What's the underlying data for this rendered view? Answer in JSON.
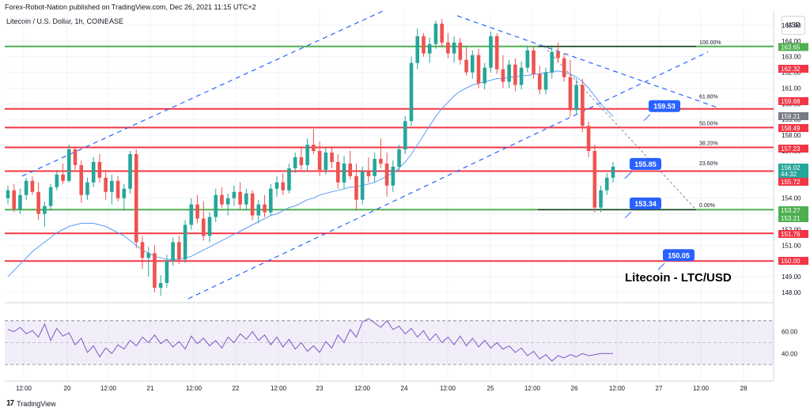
{
  "header": "Forex-Robot-Nation published on TradingView.com, Dec 26, 2021 11:15 UTC+2",
  "symbol_line": "Litecoin / U.S. Dollar, 1h, COINBASE",
  "currency_button": "USD",
  "footer_brand": "TradingView",
  "footer_logo": "17",
  "chart_data": {
    "type": "candlestick",
    "title": "Litecoin - LTC/USD",
    "x_ticks": [
      "12:00",
      "20",
      "12:00",
      "21",
      "12:00",
      "22",
      "12:00",
      "23",
      "12:00",
      "24",
      "12:00",
      "25",
      "12:00",
      "26",
      "12:00",
      "27",
      "12:00",
      "28"
    ],
    "price_ticks": [
      165.0,
      164.0,
      163.0,
      162.0,
      161.0,
      160.0,
      159.0,
      158.0,
      157.0,
      156.0,
      155.0,
      154.0,
      153.0,
      152.0,
      151.0,
      150.0,
      149.0,
      148.0
    ],
    "price_ylim": [
      147.6,
      165.9
    ],
    "rsi_ticks": [
      60.0,
      40.0
    ],
    "rsi_ylim": [
      25,
      80
    ],
    "rsi_bands": [
      70,
      30
    ],
    "horizontal_levels": [
      {
        "price": 163.65,
        "color": "#4caf50"
      },
      {
        "price": 159.68,
        "color": "#f23645"
      },
      {
        "price": 158.49,
        "color": "#f23645"
      },
      {
        "price": 157.23,
        "color": "#f23645"
      },
      {
        "price": 155.72,
        "color": "#f23645"
      },
      {
        "price": 153.27,
        "color": "#4caf50"
      },
      {
        "price": 151.76,
        "color": "#f23645"
      },
      {
        "price": 150.0,
        "color": "#f23645"
      }
    ],
    "price_tags": [
      {
        "label": "163.65",
        "color": "#4caf50"
      },
      {
        "label": "162.32",
        "color": "#f23645"
      },
      {
        "label": "159.68",
        "color": "#f23645"
      },
      {
        "label": "159.21",
        "color": "#787b86"
      },
      {
        "label": "158.49",
        "color": "#f23645"
      },
      {
        "label": "157.23",
        "color": "#f23645"
      },
      {
        "label": "156.02",
        "color": "#26a69a",
        "sub": "44:32"
      },
      {
        "label": "155.72",
        "color": "#f23645"
      },
      {
        "label": "153.27",
        "color": "#4caf50"
      },
      {
        "label": "153.21",
        "color": "#4caf50"
      },
      {
        "label": "151.76",
        "color": "#f23645"
      },
      {
        "label": "150.00",
        "color": "#f23645"
      }
    ],
    "callouts": [
      {
        "label": "159.53",
        "price": 159.53
      },
      {
        "label": "155.85",
        "price": 155.85
      },
      {
        "label": "153.34",
        "price": 153.34
      },
      {
        "label": "150.05",
        "price": 150.05
      }
    ],
    "fib_levels": [
      {
        "label": "100.00%",
        "price": 163.65
      },
      {
        "label": "61.80%",
        "price": 160.19
      },
      {
        "label": "50.00%",
        "price": 158.49
      },
      {
        "label": "38.20%",
        "price": 157.23
      },
      {
        "label": "23.60%",
        "price": 155.95
      },
      {
        "label": "0.00%",
        "price": 153.27
      }
    ],
    "candles": [
      [
        154.0,
        154.8,
        153.6,
        154.5
      ],
      [
        154.5,
        154.9,
        153.1,
        153.3
      ],
      [
        153.3,
        154.6,
        153.0,
        154.2
      ],
      [
        154.2,
        155.3,
        153.9,
        155.1
      ],
      [
        155.1,
        155.4,
        154.2,
        154.4
      ],
      [
        154.4,
        155.0,
        152.6,
        153.0
      ],
      [
        153.0,
        153.8,
        152.2,
        153.5
      ],
      [
        153.5,
        154.9,
        153.2,
        154.7
      ],
      [
        154.7,
        155.8,
        154.5,
        155.5
      ],
      [
        155.5,
        156.2,
        154.9,
        155.1
      ],
      [
        155.1,
        157.4,
        155.0,
        157.1
      ],
      [
        157.1,
        157.3,
        155.8,
        156.1
      ],
      [
        156.1,
        156.4,
        153.7,
        154.2
      ],
      [
        154.2,
        155.3,
        153.9,
        155.0
      ],
      [
        155.0,
        156.6,
        154.7,
        156.3
      ],
      [
        156.3,
        156.8,
        155.0,
        155.3
      ],
      [
        155.3,
        155.8,
        153.9,
        154.4
      ],
      [
        154.4,
        155.5,
        153.6,
        155.1
      ],
      [
        155.1,
        155.4,
        153.8,
        154.0
      ],
      [
        154.0,
        154.9,
        153.2,
        154.6
      ],
      [
        154.6,
        157.0,
        154.3,
        156.8
      ],
      [
        156.8,
        157.1,
        150.8,
        151.2
      ],
      [
        151.2,
        151.6,
        149.5,
        150.2
      ],
      [
        150.2,
        150.9,
        149.0,
        150.5
      ],
      [
        150.5,
        151.0,
        148.0,
        148.3
      ],
      [
        148.3,
        149.1,
        147.8,
        148.6
      ],
      [
        148.6,
        150.4,
        148.3,
        150.0
      ],
      [
        150.0,
        151.5,
        149.7,
        151.2
      ],
      [
        151.2,
        151.6,
        149.8,
        150.1
      ],
      [
        150.1,
        152.6,
        149.9,
        152.3
      ],
      [
        152.3,
        154.0,
        152.0,
        153.6
      ],
      [
        153.6,
        154.2,
        152.4,
        152.7
      ],
      [
        152.7,
        153.8,
        151.3,
        151.6
      ],
      [
        151.6,
        153.1,
        151.2,
        152.8
      ],
      [
        152.8,
        154.6,
        152.5,
        154.2
      ],
      [
        154.2,
        154.7,
        153.4,
        153.6
      ],
      [
        153.6,
        154.3,
        152.9,
        154.0
      ],
      [
        154.0,
        154.8,
        153.5,
        154.4
      ],
      [
        154.4,
        155.0,
        153.3,
        153.6
      ],
      [
        153.6,
        154.6,
        153.2,
        154.3
      ],
      [
        154.3,
        154.5,
        152.6,
        152.9
      ],
      [
        152.9,
        153.9,
        152.4,
        153.6
      ],
      [
        153.6,
        154.2,
        152.8,
        153.1
      ],
      [
        153.1,
        154.9,
        152.9,
        154.6
      ],
      [
        154.6,
        155.4,
        154.1,
        155.0
      ],
      [
        155.0,
        155.6,
        154.2,
        154.5
      ],
      [
        154.5,
        156.2,
        154.3,
        155.9
      ],
      [
        155.9,
        156.9,
        155.6,
        156.6
      ],
      [
        156.6,
        157.2,
        155.8,
        156.1
      ],
      [
        156.1,
        157.8,
        155.7,
        157.4
      ],
      [
        157.4,
        158.4,
        156.8,
        157.0
      ],
      [
        157.0,
        157.6,
        155.4,
        155.8
      ],
      [
        155.8,
        157.2,
        155.5,
        156.9
      ],
      [
        156.9,
        157.3,
        155.9,
        156.3
      ],
      [
        156.3,
        156.8,
        154.6,
        155.0
      ],
      [
        155.0,
        156.7,
        154.6,
        156.2
      ],
      [
        156.2,
        157.0,
        155.2,
        155.4
      ],
      [
        155.4,
        156.2,
        153.2,
        153.9
      ],
      [
        153.9,
        156.0,
        153.6,
        155.7
      ],
      [
        155.7,
        156.6,
        155.0,
        155.4
      ],
      [
        155.4,
        156.9,
        155.0,
        156.5
      ],
      [
        156.5,
        157.8,
        155.9,
        156.2
      ],
      [
        156.2,
        156.9,
        154.1,
        154.8
      ],
      [
        154.8,
        156.4,
        154.4,
        156.0
      ],
      [
        156.0,
        157.4,
        155.7,
        157.1
      ],
      [
        157.1,
        159.2,
        156.8,
        158.9
      ],
      [
        158.9,
        163.0,
        158.6,
        162.6
      ],
      [
        162.6,
        164.8,
        162.2,
        164.3
      ],
      [
        164.3,
        164.5,
        163.0,
        163.2
      ],
      [
        163.2,
        164.2,
        162.6,
        163.8
      ],
      [
        163.8,
        165.3,
        163.5,
        165.1
      ],
      [
        165.1,
        165.4,
        163.6,
        163.9
      ],
      [
        163.9,
        164.5,
        162.9,
        163.2
      ],
      [
        163.2,
        164.3,
        162.6,
        163.9
      ],
      [
        163.9,
        164.2,
        162.5,
        162.8
      ],
      [
        162.8,
        163.6,
        161.8,
        162.0
      ],
      [
        162.0,
        163.4,
        161.6,
        163.1
      ],
      [
        163.1,
        163.5,
        161.0,
        161.3
      ],
      [
        161.3,
        162.6,
        160.9,
        162.3
      ],
      [
        162.3,
        164.6,
        162.0,
        164.3
      ],
      [
        164.3,
        164.5,
        161.9,
        162.2
      ],
      [
        162.2,
        163.1,
        161.0,
        161.4
      ],
      [
        161.4,
        162.8,
        161.0,
        162.5
      ],
      [
        162.5,
        162.9,
        160.8,
        161.2
      ],
      [
        161.2,
        162.7,
        160.9,
        162.3
      ],
      [
        162.3,
        163.7,
        162.0,
        163.4
      ],
      [
        163.4,
        163.7,
        161.6,
        161.9
      ],
      [
        161.9,
        162.4,
        160.6,
        160.9
      ],
      [
        160.9,
        162.3,
        160.6,
        162.0
      ],
      [
        162.0,
        163.6,
        161.6,
        163.3
      ],
      [
        163.3,
        163.9,
        162.6,
        162.9
      ],
      [
        162.9,
        163.2,
        161.4,
        161.7
      ],
      [
        161.7,
        162.8,
        159.2,
        159.6
      ],
      [
        159.6,
        161.6,
        159.3,
        161.2
      ],
      [
        161.2,
        161.6,
        158.2,
        158.6
      ],
      [
        158.6,
        158.9,
        156.6,
        157.0
      ],
      [
        157.0,
        157.4,
        153.1,
        153.4
      ],
      [
        153.4,
        154.8,
        153.1,
        154.5
      ],
      [
        154.5,
        155.6,
        154.2,
        155.3
      ],
      [
        155.3,
        156.3,
        155.0,
        156.0
      ]
    ],
    "sma": [
      149.0,
      149.4,
      149.8,
      150.2,
      150.6,
      150.9,
      151.2,
      151.5,
      151.8,
      152.0,
      152.2,
      152.3,
      152.4,
      152.4,
      152.4,
      152.3,
      152.2,
      152.0,
      151.8,
      151.6,
      151.3,
      151.0,
      150.7,
      150.5,
      150.3,
      150.2,
      150.1,
      150.1,
      150.1,
      150.2,
      150.3,
      150.5,
      150.7,
      150.9,
      151.1,
      151.3,
      151.5,
      151.7,
      151.9,
      152.1,
      152.3,
      152.5,
      152.7,
      152.9,
      153.0,
      153.2,
      153.4,
      153.5,
      153.7,
      153.9,
      154.0,
      154.2,
      154.3,
      154.4,
      154.5,
      154.6,
      154.7,
      154.7,
      154.8,
      154.9,
      155.0,
      155.2,
      155.4,
      155.6,
      155.9,
      156.3,
      156.8,
      157.4,
      158.0,
      158.6,
      159.2,
      159.7,
      160.1,
      160.5,
      160.8,
      161.0,
      161.2,
      161.3,
      161.4,
      161.5,
      161.6,
      161.6,
      161.7,
      161.7,
      161.8,
      161.8,
      161.9,
      161.9,
      162.0,
      162.0,
      162.1,
      162.0,
      161.9,
      161.7,
      161.4,
      161.0,
      160.5,
      160.0,
      159.6,
      159.2
    ],
    "rsi": [
      62,
      60,
      64,
      58,
      61,
      55,
      67,
      52,
      63,
      56,
      59,
      48,
      54,
      41,
      47,
      37,
      45,
      40,
      48,
      44,
      52,
      47,
      55,
      50,
      57,
      49,
      53,
      46,
      51,
      44,
      56,
      49,
      54,
      47,
      52,
      45,
      55,
      50,
      58,
      53,
      60,
      52,
      57,
      48,
      55,
      46,
      53,
      44,
      50,
      42,
      47,
      41,
      51,
      45,
      57,
      50,
      62,
      55,
      69,
      72,
      68,
      64,
      70,
      62,
      65,
      58,
      63,
      55,
      61,
      52,
      58,
      50,
      55,
      48,
      56,
      47,
      54,
      46,
      52,
      45,
      50,
      44,
      47,
      41,
      45,
      38,
      42,
      35,
      39,
      33,
      38,
      36,
      39,
      37,
      40,
      38,
      39,
      40,
      40,
      40
    ]
  }
}
